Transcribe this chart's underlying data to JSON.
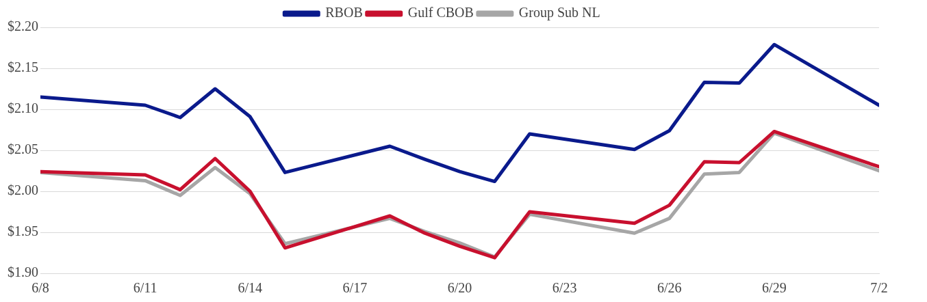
{
  "chart_data": {
    "type": "line",
    "x": [
      "--06-08",
      "--06-11",
      "--06-12",
      "--06-13",
      "--06-14",
      "--06-15",
      "--06-18",
      "--06-19",
      "--06-20",
      "--06-21",
      "--06-22",
      "--06-25",
      "--06-26",
      "--06-27",
      "--06-28",
      "--06-29",
      "--07-02"
    ],
    "series": [
      {
        "name": "RBOB",
        "color": "#0a1a8c",
        "values": [
          2.115,
          2.105,
          2.09,
          2.125,
          2.091,
          2.023,
          2.055,
          2.039,
          2.024,
          2.012,
          2.07,
          2.051,
          2.074,
          2.133,
          2.132,
          2.179,
          2.105
        ]
      },
      {
        "name": "Gulf CBOB",
        "color": "#c8102e",
        "values": [
          2.024,
          2.02,
          2.002,
          2.04,
          2.0,
          1.931,
          1.97,
          1.949,
          1.933,
          1.919,
          1.975,
          1.961,
          1.983,
          2.036,
          2.035,
          2.073,
          2.03
        ]
      },
      {
        "name": "Group Sub NL",
        "color": "#a6a6a6",
        "values": [
          2.023,
          2.013,
          1.995,
          2.029,
          1.997,
          1.936,
          1.967,
          1.951,
          1.937,
          1.92,
          1.972,
          1.949,
          1.967,
          2.021,
          2.023,
          2.071,
          2.025
        ]
      }
    ],
    "xlim": [
      "--06-08",
      "--07-02"
    ],
    "xticks": [
      {
        "value": "--06-08",
        "label": "6/8"
      },
      {
        "value": "--06-11",
        "label": "6/11"
      },
      {
        "value": "--06-14",
        "label": "6/14"
      },
      {
        "value": "--06-17",
        "label": "6/17"
      },
      {
        "value": "--06-20",
        "label": "6/20"
      },
      {
        "value": "--06-23",
        "label": "6/23"
      },
      {
        "value": "--06-26",
        "label": "6/26"
      },
      {
        "value": "--06-29",
        "label": "6/29"
      },
      {
        "value": "--07-02",
        "label": "7/2"
      }
    ],
    "ylim": [
      1.9,
      2.2
    ],
    "yticks": [
      {
        "value": 1.9,
        "label": "$1.90"
      },
      {
        "value": 1.95,
        "label": "$1.95"
      },
      {
        "value": 2.0,
        "label": "$2.00"
      },
      {
        "value": 2.05,
        "label": "$2.05"
      },
      {
        "value": 2.1,
        "label": "$2.10"
      },
      {
        "value": 2.15,
        "label": "$2.15"
      },
      {
        "value": 2.2,
        "label": "$2.20"
      }
    ],
    "grid": "y",
    "legend": "top",
    "marker": "none",
    "line_style": "solid"
  }
}
